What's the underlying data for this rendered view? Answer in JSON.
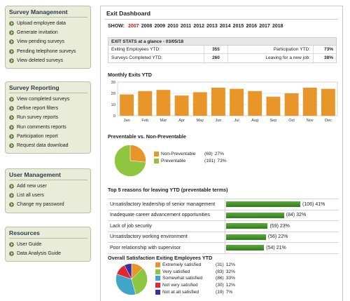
{
  "sidebar": {
    "survey_management": {
      "title": "Survey Management",
      "items": [
        "Upload employee data",
        "Generate invitation",
        "View pending surveys",
        "Pending telephone surveys",
        "View deleted surveys"
      ]
    },
    "survey_reporting": {
      "title": "Survey Reporting",
      "items": [
        "View completed surveys",
        "Define report filters",
        "Run survey reports",
        "Run comments reports",
        "Participation report",
        "Request data download"
      ]
    },
    "user_management": {
      "title": "User Management",
      "items": [
        "Add new user",
        "List all users",
        "Change my password"
      ]
    },
    "resources": {
      "title": "Resources",
      "items": [
        "User Guide",
        "Data Analysis Guide"
      ]
    }
  },
  "main": {
    "title": "Exit Dashboard",
    "show_label": "SHOW:",
    "years": [
      "2007",
      "2008",
      "2009",
      "2010",
      "2011",
      "2012",
      "2013",
      "2014",
      "2015",
      "2016",
      "2017",
      "2018"
    ],
    "active_year": "2007",
    "active_color": "#c21c1c"
  },
  "stats": {
    "heading": "EXIT STATS at a glance - 03/05/18",
    "rows": [
      {
        "label": "Exiting Employees YTD:",
        "value": "355",
        "label2": "Participation YTD:",
        "value2": "73%"
      },
      {
        "label": "Surveys Completed YTD:",
        "value": "260",
        "label2": "Leaving for a new job:",
        "value2": "38%"
      }
    ]
  },
  "sections": {
    "monthly": "Monthly Exits YTD",
    "preventable": "Preventable vs. Non-Preventable",
    "reasons": "Top 5 reasons for leaving YTD (preventable terms)",
    "satisfaction": "Overall Satisfaction Exiting Employees YTD"
  },
  "chart_data": [
    {
      "type": "bar",
      "title": "Monthly Exits YTD",
      "categories": [
        "Jan",
        "Feb",
        "Mar",
        "Apr",
        "May",
        "Jun",
        "Jul",
        "Aug",
        "Sep",
        "Oct",
        "Nov",
        "Dec"
      ],
      "values": [
        19,
        22,
        23,
        18,
        21,
        25,
        24,
        22,
        17,
        20,
        25,
        24
      ],
      "ylim": [
        0,
        30
      ],
      "yticks": [
        0,
        10,
        20,
        30
      ],
      "grid": true,
      "color": "#e8962a"
    },
    {
      "type": "pie",
      "title": "Preventable vs. Non-Preventable",
      "slices": [
        {
          "label": "Non-Preventable",
          "count": 69,
          "percent": 27,
          "color": "#e8962a"
        },
        {
          "label": "Preventable",
          "count": 191,
          "percent": 73,
          "color": "#8ec63f"
        }
      ]
    },
    {
      "type": "bar",
      "orientation": "horizontal",
      "title": "Top 5 reasons for leaving YTD (preventable terms)",
      "categories": [
        "Unsatisfactory leadership of senior management",
        "Inadequate career advancement opportunities",
        "Lack of job security",
        "Unsatisfactory working environment",
        "Poor relationship with supervisor"
      ],
      "counts": [
        106,
        84,
        59,
        56,
        54
      ],
      "percents": [
        41,
        32,
        23,
        22,
        21
      ],
      "color": "#3e8e27"
    },
    {
      "type": "pie",
      "title": "Overall Satisfaction Exiting Employees YTD",
      "slices": [
        {
          "label": "Extremely satisfied",
          "count": 31,
          "percent": 12,
          "color": "#e8962a"
        },
        {
          "label": "Very satisfied",
          "count": 83,
          "percent": 32,
          "color": "#8ec63f"
        },
        {
          "label": "Somewhat satisfied",
          "count": 86,
          "percent": 33,
          "color": "#3fa6c8"
        },
        {
          "label": "Not very satisfied",
          "count": 30,
          "percent": 12,
          "color": "#e0282e"
        },
        {
          "label": "Not at all satisfied",
          "count": 19,
          "percent": 7,
          "color": "#3a2ea3"
        }
      ]
    }
  ]
}
